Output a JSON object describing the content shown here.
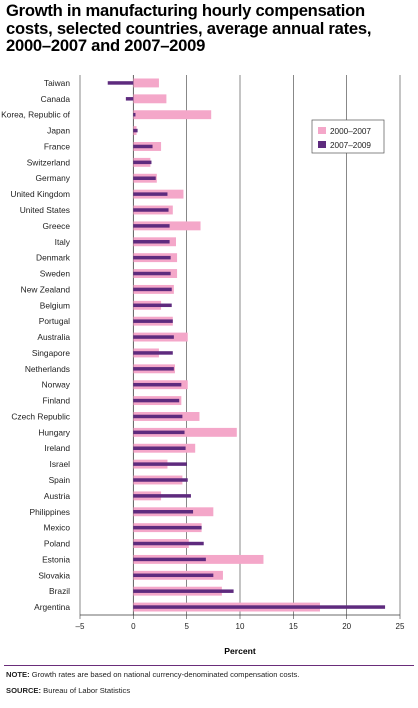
{
  "chart_data": {
    "type": "bar",
    "orientation": "horizontal",
    "title": "Growth in manufacturing hourly compensation costs, selected countries, average annual rates, 2000–2007 and 2007–2009",
    "xlabel": "Percent",
    "ylabel": "",
    "xlim": [
      -5,
      25
    ],
    "xticks": [
      -5,
      0,
      5,
      10,
      15,
      20,
      25
    ],
    "grid": true,
    "legend_position": "top-right",
    "categories": [
      "Taiwan",
      "Canada",
      "Korea, Republic of",
      "Japan",
      "France",
      "Switzerland",
      "Germany",
      "United Kingdom",
      "United States",
      "Greece",
      "Italy",
      "Denmark",
      "Sweden",
      "New Zealand",
      "Belgium",
      "Portugal",
      "Australia",
      "Singapore",
      "Netherlands",
      "Norway",
      "Finland",
      "Czech Republic",
      "Hungary",
      "Ireland",
      "Israel",
      "Spain",
      "Austria",
      "Philippines",
      "Mexico",
      "Poland",
      "Estonia",
      "Slovakia",
      "Brazil",
      "Argentina"
    ],
    "series": [
      {
        "name": "2000–2007",
        "color": "#f4a7c9",
        "values": [
          2.4,
          3.1,
          7.3,
          0.3,
          2.6,
          1.6,
          2.2,
          4.7,
          3.7,
          6.3,
          4.0,
          4.1,
          4.1,
          3.8,
          2.6,
          3.7,
          5.1,
          2.4,
          3.9,
          5.1,
          4.5,
          6.2,
          9.7,
          5.8,
          3.2,
          4.6,
          2.6,
          7.5,
          6.4,
          5.2,
          12.2,
          8.4,
          8.3,
          17.5
        ]
      },
      {
        "name": "2007–2009",
        "color": "#5e2b7e",
        "values": [
          -2.4,
          -0.7,
          0.2,
          0.4,
          1.8,
          1.7,
          2.1,
          3.2,
          3.3,
          3.4,
          3.4,
          3.5,
          3.5,
          3.6,
          3.6,
          3.7,
          3.8,
          3.7,
          3.8,
          4.5,
          4.3,
          4.6,
          4.8,
          4.9,
          5.0,
          5.1,
          5.4,
          5.6,
          6.4,
          6.6,
          6.8,
          7.5,
          9.4,
          23.6
        ]
      }
    ]
  },
  "note": {
    "label": "NOTE:",
    "text": "Growth rates are based on national currency-denominated compensation costs."
  },
  "source": {
    "label": "SOURCE:",
    "text": "Bureau of Labor Statistics"
  }
}
